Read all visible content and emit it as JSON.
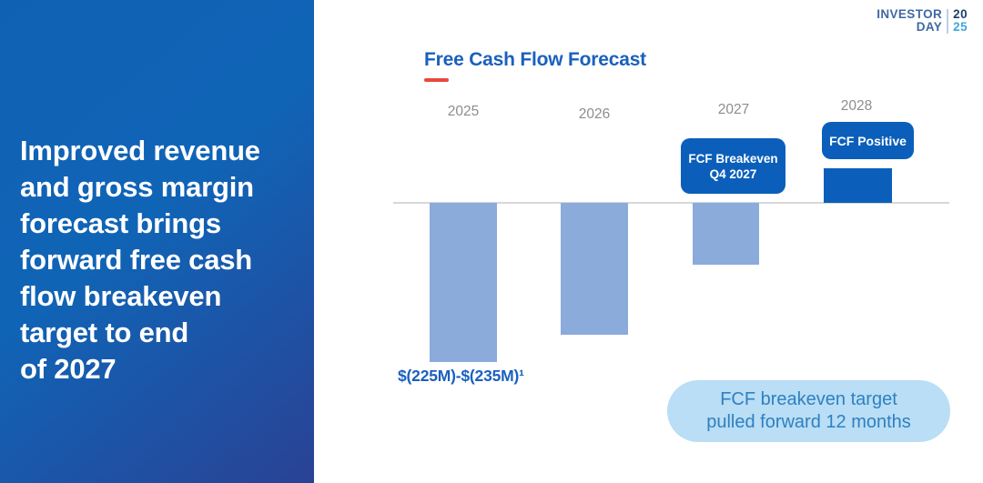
{
  "panel": {
    "headline": "Improved revenue\nand gross margin\nforecast brings\nforward free cash\nflow breakeven\ntarget to end\nof 2027"
  },
  "logo": {
    "line1": "INVESTOR",
    "line2": "DAY",
    "year_top": "20",
    "year_bottom": "25"
  },
  "chart_data": {
    "type": "bar",
    "title": "Free Cash Flow Forecast",
    "categories": [
      "2025",
      "2026",
      "2027",
      "2028"
    ],
    "values": [
      -230,
      -190,
      -90,
      50
    ],
    "unit": "$M",
    "ylim": [
      -260,
      80
    ],
    "grid": false,
    "value_label_2025": "$(225M)-$(235M)¹",
    "breakeven_label": "FCF Breakeven\nQ4 2027",
    "positive_label": "FCF Positive",
    "callout": "FCF breakeven target\npulled forward 12 months"
  },
  "colors": {
    "bar_negative": "#8BABDB",
    "bar_positive": "#0B5FBA",
    "title_blue": "#1A60BD",
    "accent_red": "#E8483E",
    "year_label": "#8D8D8D",
    "axis_line": "#D8D8D8",
    "callout_bg": "#B9DEF5",
    "callout_text": "#2F80C1",
    "panel_gradient": [
      "#0F61B4",
      "#1064B6",
      "#2A4295"
    ],
    "logo_text": "#3F69A4",
    "logo_dark": "#1C3E6E",
    "logo_light": "#3FA7DC"
  }
}
